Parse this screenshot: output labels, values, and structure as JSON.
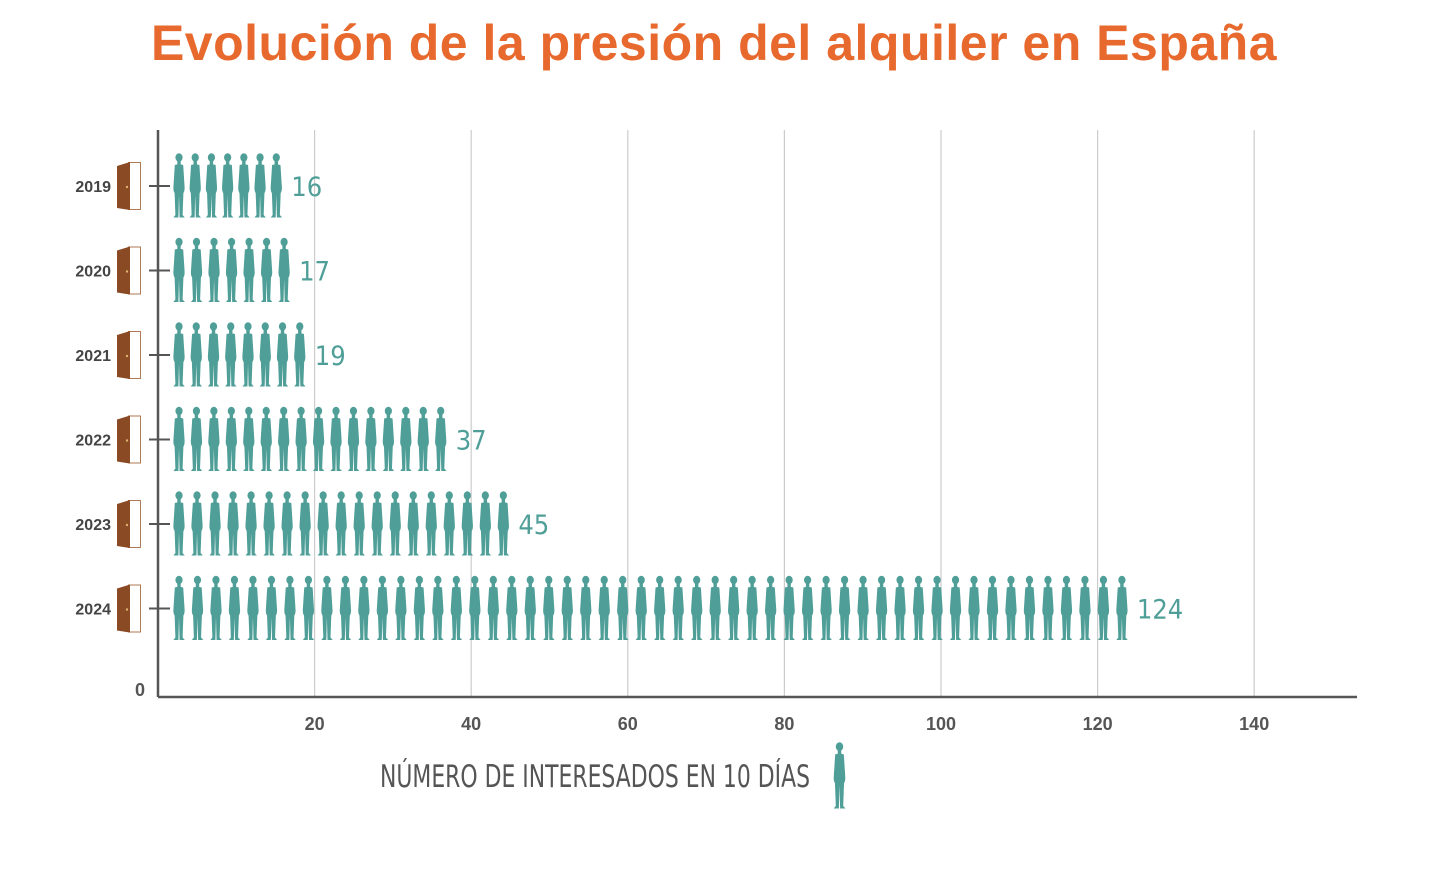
{
  "chart_data": {
    "type": "bar",
    "title": "Evolución de la presión del alquiler en España",
    "xlabel": "NÚMERO DE INTERESADOS EN 10 DÍAS",
    "ylabel": "",
    "orientation": "horizontal",
    "categories": [
      "2019",
      "2020",
      "2021",
      "2022",
      "2023",
      "2024"
    ],
    "values": [
      16,
      17,
      19,
      37,
      45,
      124
    ],
    "value_labels": [
      "16",
      "17",
      "19",
      "37",
      "45",
      "124"
    ],
    "xlim": [
      0,
      150
    ],
    "x_ticks": [
      20,
      40,
      60,
      80,
      100,
      120,
      140
    ],
    "x_tick_labels": [
      "20",
      "40",
      "60",
      "80",
      "100",
      "120",
      "140"
    ],
    "origin_label": "0",
    "grid": "vertical",
    "colors": {
      "title": "#e8692e",
      "bars": "#4f9f98",
      "axis": "#555555",
      "grid": "#cccccc",
      "door": "#8a4a24"
    },
    "icons": {
      "bar_unit": "person-icon",
      "category_marker": "door-icon",
      "legend_marker": "person-icon"
    }
  }
}
